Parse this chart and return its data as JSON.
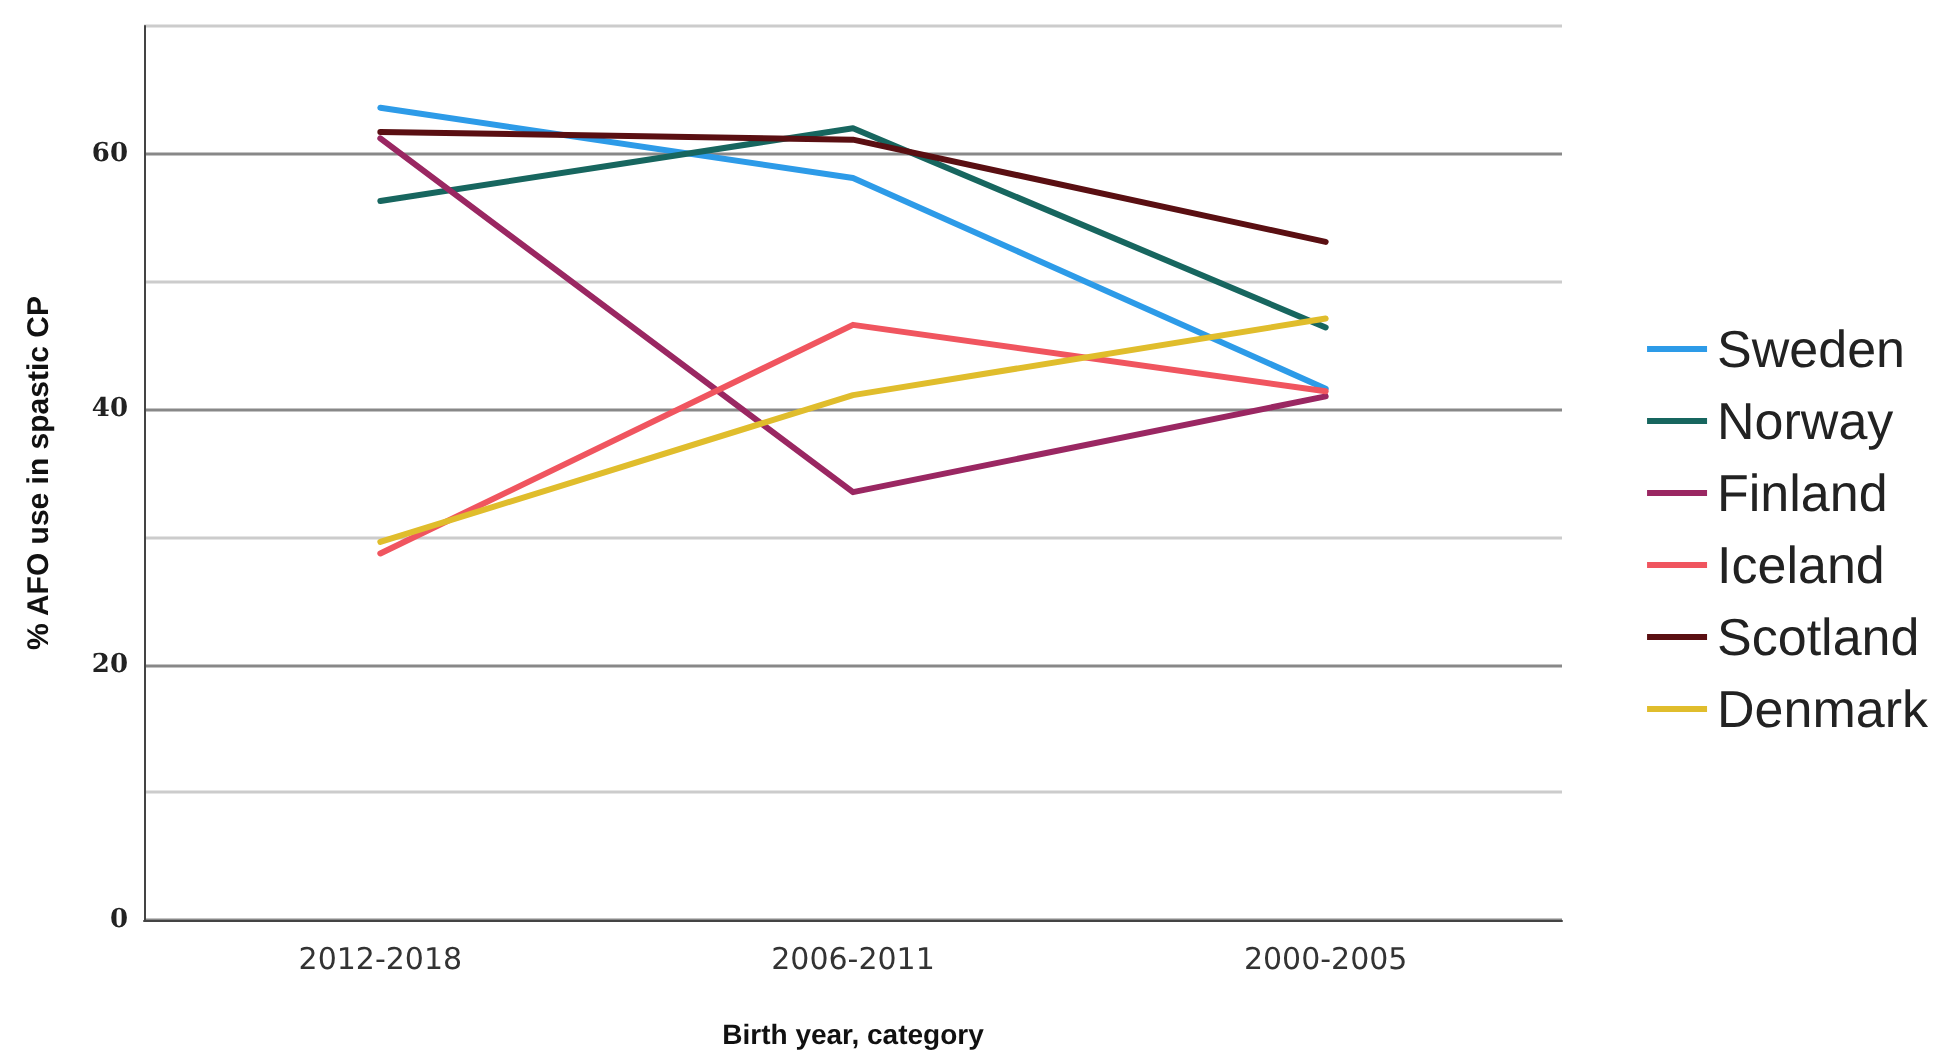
{
  "chart_data": {
    "type": "line",
    "xlabel": "Birth year, category",
    "ylabel": "% AFO use in spastic CP",
    "categories": [
      "2012-2018",
      "2006-2011",
      "2000-2005"
    ],
    "series": [
      {
        "name": "Sweden",
        "color": "#2d9be8",
        "values": [
          63.6,
          58.1,
          41.6
        ]
      },
      {
        "name": "Norway",
        "color": "#17665f",
        "values": [
          56.3,
          62.0,
          46.4
        ]
      },
      {
        "name": "Finland",
        "color": "#9a2762",
        "values": [
          61.2,
          33.5,
          41.0
        ]
      },
      {
        "name": "Iceland",
        "color": "#f0555f",
        "values": [
          28.7,
          46.6,
          41.4
        ]
      },
      {
        "name": "Scotland",
        "color": "#5a0f12",
        "values": [
          61.7,
          61.1,
          53.1
        ]
      },
      {
        "name": "Denmark",
        "color": "#e0bd2c",
        "values": [
          29.6,
          41.1,
          47.1
        ]
      }
    ],
    "ylim": [
      0,
      70
    ],
    "yticks": [
      0,
      {
        "value": 10,
        "label": null
      },
      20,
      {
        "value": 30,
        "label": null
      },
      40,
      {
        "value": 50,
        "label": null
      },
      60,
      {
        "value": 70,
        "label": null
      }
    ],
    "grid": "y",
    "legend": "right",
    "marker": "none",
    "line_style": "solid"
  }
}
